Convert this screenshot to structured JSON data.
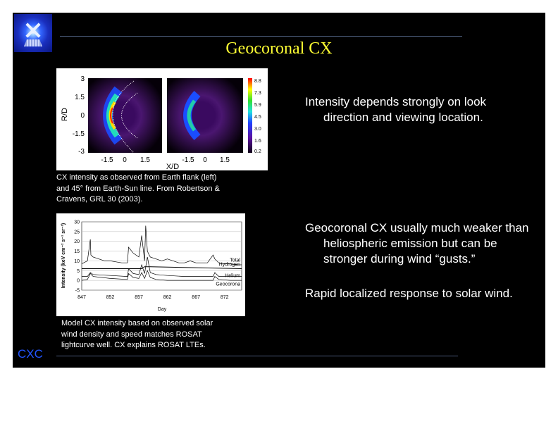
{
  "title": "Geocoronal CX",
  "logo_label": "CXC",
  "footer_label": "CXC",
  "figure1": {
    "y_label": "R/D",
    "x_label": "X/D",
    "y_ticks": [
      "3",
      "1.5",
      "0",
      "-1.5",
      "-3"
    ],
    "x_ticks_left": [
      "-1.5",
      "0",
      "1.5"
    ],
    "x_ticks_right": [
      "-1.5",
      "0",
      "1.5"
    ],
    "colorbar_ticks": [
      "8.8",
      "7.3",
      "5.9",
      "4.5",
      "3.0",
      "1.6",
      "0.2"
    ],
    "caption": [
      "CX intensity as observed from Earth flank (left)",
      "and 45° from Earth-Sun line.  From Robertson &",
      "Cravens, GRL 30 (2003)."
    ]
  },
  "figure2": {
    "caption": [
      "Model CX intensity based on observed solar",
      "wind density and speed matches ROSAT",
      "lightcurve well.  CX explains ROSAT LTEs."
    ]
  },
  "chart_data": {
    "type": "line",
    "xlabel": "Day",
    "ylabel": "Intensity (keV cm⁻² s⁻¹ sr⁻¹)",
    "xlim": [
      847,
      875
    ],
    "ylim": [
      -5,
      30
    ],
    "x_ticks": [
      "847",
      "852",
      "857",
      "862",
      "867",
      "872"
    ],
    "y_ticks": [
      "30",
      "25",
      "20",
      "15",
      "10",
      "5",
      "0",
      "-5"
    ],
    "grid": "horizontal",
    "series": [
      {
        "name": "Total",
        "x": [
          847,
          848,
          848.5,
          848.6,
          849,
          850,
          851,
          852,
          853,
          854,
          855,
          855.2,
          856,
          856.5,
          857,
          857.5,
          858,
          858.2,
          858.5,
          858.8,
          859,
          860,
          861,
          862,
          863,
          864,
          865,
          866,
          867,
          868,
          869,
          870,
          870.3,
          871,
          872,
          873,
          874,
          875
        ],
        "values": [
          8.5,
          10,
          21,
          13,
          12,
          11,
          10,
          10,
          9.5,
          9,
          9,
          17,
          14,
          13,
          12,
          23,
          10,
          28,
          15,
          13,
          12,
          11,
          10,
          11,
          10,
          9,
          9,
          10,
          9,
          9,
          9,
          13,
          11,
          9,
          8.5,
          8.5,
          8,
          8
        ]
      },
      {
        "name": "Hydrogen",
        "x": [
          847,
          857.5,
          858,
          858.5,
          859,
          875
        ],
        "values": [
          6,
          6,
          7,
          7,
          7,
          6
        ]
      },
      {
        "name": "Helium",
        "x": [
          847,
          848,
          848.5,
          849,
          852,
          855,
          855.2,
          856,
          857,
          857.5,
          858,
          858.5,
          859,
          860,
          862,
          865,
          868,
          870,
          870.3,
          871,
          873,
          875
        ],
        "values": [
          2,
          2,
          4,
          3,
          2.5,
          2,
          6,
          3.5,
          3,
          8,
          3.5,
          12,
          4,
          3,
          2.5,
          2,
          2,
          2,
          4,
          2,
          2,
          2
        ]
      },
      {
        "name": "Geocorona",
        "x": [
          847,
          848,
          848.5,
          849,
          852,
          855,
          855.2,
          856,
          857,
          857.5,
          858,
          858.5,
          859,
          860,
          862,
          865,
          868,
          870,
          870.3,
          871,
          873,
          875
        ],
        "values": [
          0,
          0.5,
          3.5,
          2,
          1,
          0.5,
          3.5,
          1.5,
          1,
          4,
          1,
          5,
          1.5,
          0.5,
          0,
          0,
          0,
          0,
          2,
          0.5,
          0,
          0
        ]
      }
    ]
  },
  "bullets": [
    "Intensity depends strongly on look direction and viewing location.",
    "Geocoronal CX usually much weaker than heliospheric emission but can be stronger during wind “gusts.”",
    "Rapid localized response to solar wind."
  ]
}
